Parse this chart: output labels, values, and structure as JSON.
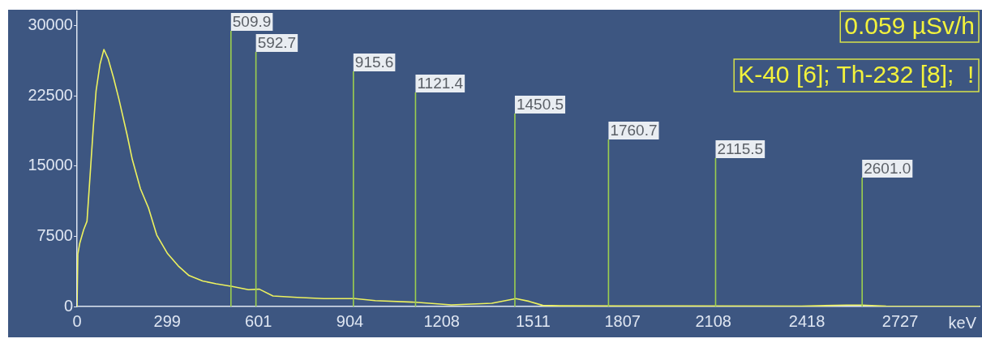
{
  "chart_data": {
    "type": "line",
    "xlabel": "keV",
    "color": "#eef25e",
    "marker": "none",
    "x": [
      0,
      2.7,
      9,
      22,
      33,
      45,
      54,
      63,
      76,
      89,
      103,
      121,
      139,
      166,
      183,
      210,
      237,
      264,
      300,
      335,
      371,
      416,
      461,
      514,
      568,
      604,
      649,
      729,
      818,
      921,
      988,
      1122,
      1240,
      1374,
      1454,
      1498,
      1543,
      1600,
      2000,
      2400,
      2550,
      2600,
      2680,
      2990
    ],
    "values": [
      0,
      5600,
      6750,
      8200,
      9100,
      14830,
      19170,
      22980,
      25850,
      27430,
      26450,
      24400,
      22100,
      18300,
      15700,
      12570,
      10500,
      7630,
      5640,
      4340,
      3300,
      2720,
      2430,
      2140,
      1790,
      1850,
      1130,
      980,
      840,
      840,
      630,
      460,
      170,
      350,
      840,
      550,
      120,
      80,
      60,
      40,
      150,
      150,
      40,
      20
    ],
    "xlim": [
      0,
      2990
    ],
    "xticks": [
      0,
      299,
      601,
      904,
      1208,
      1511,
      1807,
      2108,
      2418,
      2727
    ],
    "ylim": [
      0,
      31500
    ],
    "yticks": [
      0,
      7500,
      15000,
      22500,
      30000
    ],
    "ref_lines": [
      {
        "axis": "x",
        "value": 509.9,
        "label": "509.9",
        "color": "#9ccf4e"
      },
      {
        "axis": "x",
        "value": 592.7,
        "label": "592.7",
        "color": "#9ccf4e"
      },
      {
        "axis": "x",
        "value": 915.6,
        "label": "915.6",
        "color": "#9ccf4e"
      },
      {
        "axis": "x",
        "value": 1121.4,
        "label": "1121.4",
        "color": "#9ccf4e"
      },
      {
        "axis": "x",
        "value": 1450.5,
        "label": "1450.5",
        "color": "#9ccf4e"
      },
      {
        "axis": "x",
        "value": 1760.7,
        "label": "1760.7",
        "color": "#9ccf4e"
      },
      {
        "axis": "x",
        "value": 2115.5,
        "label": "2115.5",
        "color": "#9ccf4e"
      },
      {
        "axis": "x",
        "value": 2601.0,
        "label": "2601.0",
        "color": "#9ccf4e"
      }
    ],
    "annotations": [
      "0.059 µSv/h",
      "K-40 [6]; Th-232 [8];  !"
    ]
  }
}
